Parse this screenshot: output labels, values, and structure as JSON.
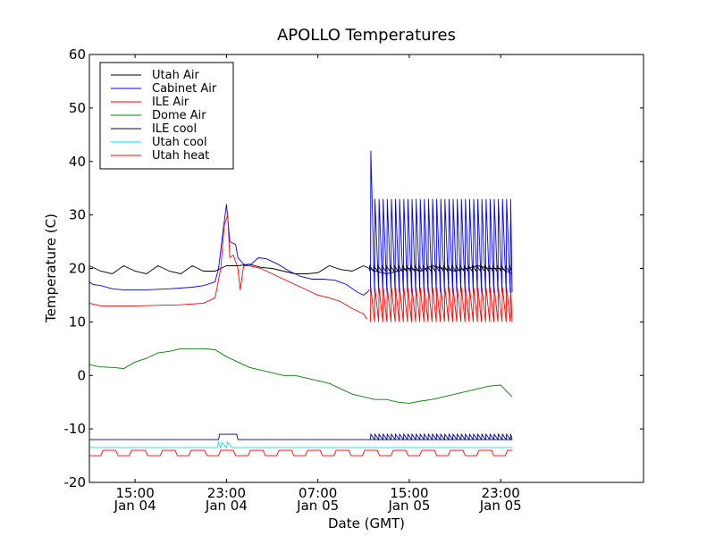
{
  "chart_data": {
    "type": "line",
    "title": "APOLLO Temperatures",
    "xlabel": "Date (GMT)",
    "ylabel": "Temperature (C)",
    "xlim": [
      11.0,
      59.5
    ],
    "ylim": [
      -20,
      60
    ],
    "yticks": [
      -20,
      -10,
      0,
      10,
      20,
      30,
      40,
      50,
      60
    ],
    "ytick_labels": [
      "-20",
      "-10",
      "0",
      "10",
      "20",
      "30",
      "40",
      "50",
      "60"
    ],
    "xticks": [
      {
        "x": 15,
        "time": "15:00",
        "date": "Jan 04"
      },
      {
        "x": 23,
        "time": "23:00",
        "date": "Jan 04"
      },
      {
        "x": 31,
        "time": "07:00",
        "date": "Jan 05"
      },
      {
        "x": 39,
        "time": "15:00",
        "date": "Jan 05"
      },
      {
        "x": 47,
        "time": "23:00",
        "date": "Jan 05"
      }
    ],
    "legend_position": "top-left",
    "series": [
      {
        "name": "Utah Air",
        "color": "#000000",
        "points": [
          [
            11,
            20.5
          ],
          [
            12,
            19.5
          ],
          [
            13,
            19
          ],
          [
            14,
            20.5
          ],
          [
            15,
            19.5
          ],
          [
            16,
            19
          ],
          [
            17,
            20.5
          ],
          [
            18,
            19.5
          ],
          [
            19,
            19
          ],
          [
            20,
            20.5
          ],
          [
            21,
            19.5
          ],
          [
            22,
            19.5
          ],
          [
            23,
            20.5
          ],
          [
            24,
            20.5
          ],
          [
            25,
            20.8
          ],
          [
            26,
            20.2
          ],
          [
            27,
            20
          ],
          [
            28,
            19.5
          ],
          [
            29,
            19
          ],
          [
            30,
            19
          ],
          [
            31,
            19.2
          ],
          [
            32,
            20.5
          ],
          [
            33,
            19.8
          ],
          [
            34,
            19.5
          ],
          [
            35,
            20.5
          ],
          [
            36,
            19.5
          ],
          [
            37,
            19
          ],
          [
            38,
            19.5
          ],
          [
            39,
            20
          ],
          [
            40,
            19.5
          ],
          [
            41,
            20.5
          ],
          [
            42,
            20
          ],
          [
            43,
            19.5
          ],
          [
            44,
            20
          ],
          [
            45,
            20.5
          ],
          [
            46,
            20
          ],
          [
            47,
            20
          ],
          [
            48,
            19
          ]
        ]
      },
      {
        "name": "Cabinet Air",
        "color": "#0000ff",
        "points": [
          [
            11,
            17.5
          ],
          [
            11.3,
            17
          ],
          [
            12,
            16.8
          ],
          [
            13,
            16.2
          ],
          [
            14,
            16
          ],
          [
            15,
            16
          ],
          [
            16,
            16
          ],
          [
            18,
            16.2
          ],
          [
            20,
            16.5
          ],
          [
            21,
            16.8
          ],
          [
            22,
            17.5
          ],
          [
            22.3,
            20
          ],
          [
            22.7,
            27
          ],
          [
            23,
            32
          ],
          [
            23.3,
            25
          ],
          [
            23.8,
            24.5
          ],
          [
            24,
            22
          ],
          [
            24.5,
            20.8
          ],
          [
            25,
            20.5
          ],
          [
            25.8,
            22
          ],
          [
            26.5,
            21.8
          ],
          [
            27.5,
            20.8
          ],
          [
            28.5,
            19.5
          ],
          [
            29.5,
            18.5
          ],
          [
            30.5,
            18
          ],
          [
            31.5,
            18
          ],
          [
            32.5,
            17.8
          ],
          [
            33.5,
            17
          ],
          [
            34.5,
            15.5
          ],
          [
            35,
            15
          ],
          [
            35.3,
            15.5
          ],
          [
            35.5,
            16
          ]
        ]
      },
      {
        "name": "ILE Air",
        "color": "#ff0000",
        "points": [
          [
            11,
            13.5
          ],
          [
            12,
            13
          ],
          [
            13,
            13
          ],
          [
            15,
            13
          ],
          [
            17,
            13.1
          ],
          [
            19,
            13.2
          ],
          [
            21,
            13.5
          ],
          [
            22,
            14.5
          ],
          [
            22.5,
            20
          ],
          [
            22.8,
            28
          ],
          [
            23.1,
            30
          ],
          [
            23.3,
            22
          ],
          [
            23.6,
            22.5
          ],
          [
            24,
            20
          ],
          [
            24.2,
            16
          ],
          [
            24.5,
            20.5
          ],
          [
            25,
            20.5
          ],
          [
            26,
            20
          ],
          [
            27,
            19
          ],
          [
            28,
            18
          ],
          [
            29,
            17
          ],
          [
            30,
            16
          ],
          [
            31,
            15
          ],
          [
            32,
            14.5
          ],
          [
            33,
            13.8
          ],
          [
            34,
            12.5
          ],
          [
            35,
            11.5
          ],
          [
            35.3,
            10.5
          ]
        ]
      },
      {
        "name": "Dome Air",
        "color": "#008000",
        "points": [
          [
            11,
            2
          ],
          [
            12,
            1.6
          ],
          [
            13,
            1.5
          ],
          [
            14,
            1.3
          ],
          [
            15,
            2.5
          ],
          [
            16,
            3.2
          ],
          [
            17,
            4.2
          ],
          [
            18,
            4.5
          ],
          [
            19,
            5
          ],
          [
            20,
            5
          ],
          [
            21,
            5
          ],
          [
            22,
            4.8
          ],
          [
            23,
            3.5
          ],
          [
            24,
            2.5
          ],
          [
            25,
            1.5
          ],
          [
            26,
            1
          ],
          [
            27,
            0.5
          ],
          [
            28,
            0
          ],
          [
            29,
            0
          ],
          [
            30,
            -0.5
          ],
          [
            31,
            -1
          ],
          [
            32,
            -1.5
          ],
          [
            33,
            -2.5
          ],
          [
            34,
            -3.5
          ],
          [
            35,
            -4
          ],
          [
            36,
            -4.5
          ],
          [
            37,
            -4.5
          ],
          [
            38,
            -5
          ],
          [
            39,
            -5.2
          ],
          [
            40,
            -4.8
          ],
          [
            41,
            -4.5
          ],
          [
            42,
            -4
          ],
          [
            43,
            -3.5
          ],
          [
            44,
            -3
          ],
          [
            45,
            -2.5
          ],
          [
            46,
            -2
          ],
          [
            47,
            -1.8
          ],
          [
            48,
            -4
          ]
        ]
      },
      {
        "name": "ILE cool",
        "color": "#00008b",
        "points": [
          [
            11,
            -12
          ],
          [
            22.3,
            -12
          ],
          [
            22.4,
            -11
          ],
          [
            23.9,
            -11
          ],
          [
            24,
            -12
          ],
          [
            35.4,
            -12
          ],
          [
            48,
            -12
          ]
        ]
      },
      {
        "name": "Utah cool",
        "color": "#00e5e5",
        "points": [
          [
            11,
            -13.5
          ],
          [
            22.2,
            -13.5
          ],
          [
            22.3,
            -12.5
          ],
          [
            22.5,
            -13.5
          ],
          [
            22.6,
            -12.5
          ],
          [
            23,
            -13.5
          ],
          [
            23.1,
            -12.5
          ],
          [
            23.5,
            -13.5
          ],
          [
            48,
            -13.5
          ]
        ]
      },
      {
        "name": "Utah heat",
        "color": "#ff0000",
        "points": [
          [
            11,
            -15
          ],
          [
            12,
            -15
          ],
          [
            12.2,
            -14
          ],
          [
            13.3,
            -14
          ],
          [
            13.5,
            -15
          ],
          [
            14.5,
            -15
          ],
          [
            14.7,
            -14
          ],
          [
            15.9,
            -14
          ],
          [
            16.1,
            -15
          ],
          [
            17.2,
            -15
          ],
          [
            17.4,
            -14
          ],
          [
            18.5,
            -14
          ],
          [
            18.7,
            -15
          ],
          [
            19.7,
            -15
          ],
          [
            19.9,
            -14
          ],
          [
            21.1,
            -14
          ],
          [
            21.3,
            -15
          ],
          [
            22.3,
            -15
          ],
          [
            22.5,
            -14
          ],
          [
            23.6,
            -14
          ],
          [
            23.8,
            -15
          ],
          [
            24.9,
            -15
          ],
          [
            25.1,
            -14
          ],
          [
            26.2,
            -14
          ],
          [
            26.4,
            -15
          ],
          [
            27.4,
            -15
          ],
          [
            27.6,
            -14
          ],
          [
            28.7,
            -14
          ],
          [
            28.9,
            -15
          ],
          [
            29.9,
            -15
          ],
          [
            30.1,
            -14
          ],
          [
            31.2,
            -14
          ],
          [
            31.4,
            -15
          ],
          [
            32.4,
            -15
          ],
          [
            32.6,
            -14
          ],
          [
            33.7,
            -14
          ],
          [
            33.9,
            -15
          ],
          [
            34.9,
            -15
          ],
          [
            35.1,
            -14
          ],
          [
            36.2,
            -14
          ],
          [
            36.4,
            -15
          ],
          [
            37.4,
            -15
          ],
          [
            37.6,
            -14
          ],
          [
            38.7,
            -14
          ],
          [
            38.9,
            -15
          ],
          [
            39.9,
            -15
          ],
          [
            40.1,
            -14
          ],
          [
            41.2,
            -14
          ],
          [
            41.4,
            -15
          ],
          [
            42.4,
            -15
          ],
          [
            42.6,
            -14
          ],
          [
            43.7,
            -14
          ],
          [
            43.9,
            -15
          ],
          [
            44.9,
            -15
          ],
          [
            45.1,
            -14
          ],
          [
            46.2,
            -14
          ],
          [
            46.4,
            -15
          ],
          [
            47.4,
            -15
          ],
          [
            47.6,
            -14
          ],
          [
            48,
            -14
          ]
        ]
      }
    ],
    "oscillations": [
      {
        "series": "Cabinet Air",
        "start": 35.6,
        "end": 48.0,
        "period": 0.36,
        "peak": 33,
        "trough": 15.5,
        "first_peak": 42
      },
      {
        "series": "ILE Air",
        "start": 35.6,
        "end": 48.0,
        "period": 0.36,
        "peak": 16.5,
        "trough": 10
      },
      {
        "series": "ILE cool",
        "start": 35.6,
        "end": 48.0,
        "period": 0.36,
        "peak": -11,
        "trough": -12
      },
      {
        "series": "Utah Air",
        "start": 35.5,
        "end": 48.0,
        "period": 0.36,
        "peak": 20.5,
        "trough": 19.5
      }
    ]
  }
}
